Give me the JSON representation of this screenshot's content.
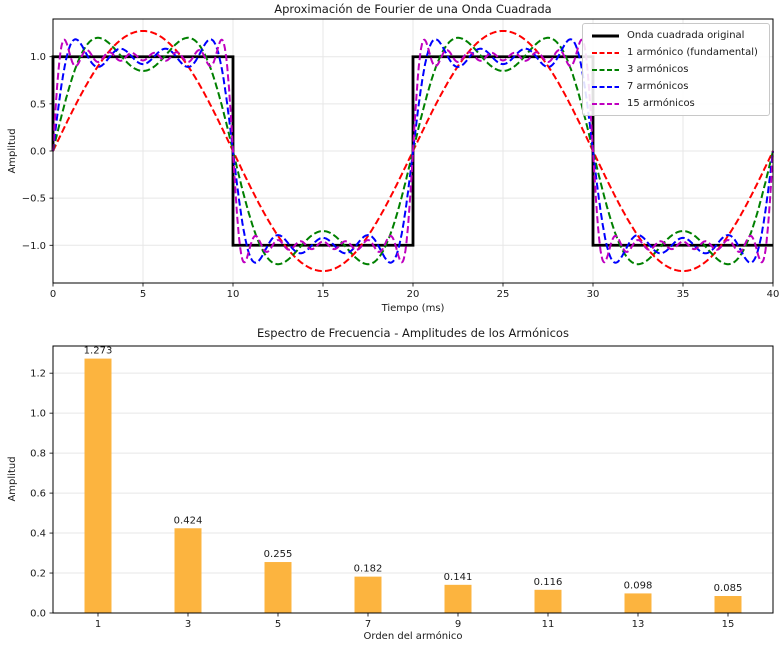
{
  "figure": {
    "background": "#ffffff",
    "text_color": "#1a1a1a",
    "grid_color": "#e7e7e7",
    "spine_color": "#000000"
  },
  "chart_data": [
    {
      "type": "line",
      "title": "Aproximación de Fourier de una Onda Cuadrada",
      "xlabel": "Tiempo (ms)",
      "ylabel": "Amplitud",
      "xlim": [
        0,
        40
      ],
      "ylim": [
        -1.4,
        1.4
      ],
      "xticks": [
        0,
        5,
        10,
        15,
        20,
        25,
        30,
        35,
        40
      ],
      "xtick_labels": [
        "0",
        "5",
        "10",
        "15",
        "20",
        "25",
        "30",
        "35",
        "40"
      ],
      "yticks": [
        -1.0,
        -0.5,
        0.0,
        0.5,
        1.0
      ],
      "ytick_labels": [
        "−1.0",
        "−0.5",
        "0.0",
        "0.5",
        "1.0"
      ],
      "grid": "both",
      "legend_position": "upper right",
      "square_wave": {
        "label": "Onda cuadrada original",
        "color": "#000000",
        "style": "solid",
        "linewidth": 2.8,
        "period_ms": 20,
        "amplitude": 1
      },
      "series": [
        {
          "label": "1 armónico (fundamental)",
          "color": "#ff0000",
          "style": "dashed",
          "max_harmonic": 1
        },
        {
          "label": "3 armónicos",
          "color": "#008000",
          "style": "dashed",
          "max_harmonic": 3
        },
        {
          "label": "7 armónicos",
          "color": "#0000ff",
          "style": "dashed",
          "max_harmonic": 7
        },
        {
          "label": "15 armónicos",
          "color": "#bf00bf",
          "style": "dashed",
          "max_harmonic": 15
        }
      ],
      "fourier": {
        "period_ms": 20,
        "harmonic_amplitude_formula": "4/(n*pi)",
        "odd_harmonics_only": true
      }
    },
    {
      "type": "bar",
      "title": "Espectro de Frecuencia - Amplitudes de los Armónicos",
      "xlabel": "Orden del armónico",
      "ylabel": "Amplitud",
      "categories": [
        1,
        3,
        5,
        7,
        9,
        11,
        13,
        15
      ],
      "category_labels": [
        "1",
        "3",
        "5",
        "7",
        "9",
        "11",
        "13",
        "15"
      ],
      "values": [
        1.273,
        0.424,
        0.255,
        0.182,
        0.141,
        0.116,
        0.098,
        0.085
      ],
      "value_labels": [
        "1.273",
        "0.424",
        "0.255",
        "0.182",
        "0.141",
        "0.116",
        "0.098",
        "0.085"
      ],
      "bar_color": "#fcb43f",
      "xlim": [
        0,
        16
      ],
      "ylim": [
        0,
        1.336
      ],
      "yticks": [
        0.0,
        0.2,
        0.4,
        0.6,
        0.8,
        1.0,
        1.2
      ],
      "ytick_labels": [
        "0.0",
        "0.2",
        "0.4",
        "0.6",
        "0.8",
        "1.0",
        "1.2"
      ],
      "grid": "y"
    }
  ]
}
